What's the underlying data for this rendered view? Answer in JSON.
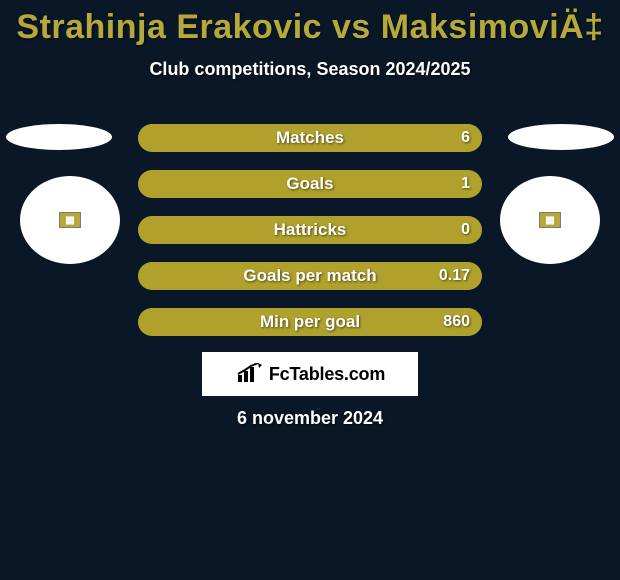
{
  "colors": {
    "background": "#0a1726",
    "title": "#b6a93c",
    "subtitle": "#ffffff",
    "row_track": "#2c3a24",
    "row_fill": "#b0a02c",
    "row_label": "#ffffff",
    "row_value": "#ffffff",
    "side_shape": "#ffffff",
    "inner_badge_bg": "#b6a93c",
    "inner_badge_border": "#7a7a7a",
    "inner_badge_text": "#ffffff",
    "brand_bg": "#ffffff",
    "brand_text": "#000000",
    "date_text": "#ffffff"
  },
  "title": "Strahinja Erakovic vs MaksimoviÄ‡",
  "subtitle": "Club competitions, Season 2024/2025",
  "rows": [
    {
      "label": "Matches",
      "value": "6",
      "fill_pct": 100
    },
    {
      "label": "Goals",
      "value": "1",
      "fill_pct": 100
    },
    {
      "label": "Hattricks",
      "value": "0",
      "fill_pct": 100
    },
    {
      "label": "Goals per match",
      "value": "0.17",
      "fill_pct": 100
    },
    {
      "label": "Min per goal",
      "value": "860",
      "fill_pct": 100
    }
  ],
  "inner_badge_glyph": "▦",
  "brand": "FcTables.com",
  "date": "6 november 2024"
}
